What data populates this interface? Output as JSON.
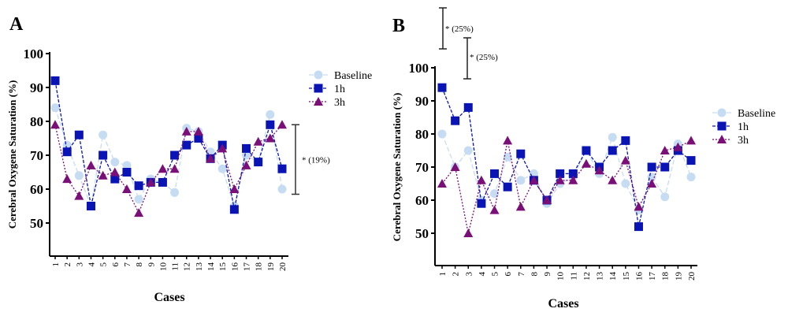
{
  "chart_data": [
    {
      "type": "line",
      "panel": "A",
      "title": "",
      "xlabel": "Cases",
      "ylabel": "Cerebral Oxygene Saturation (%)",
      "ylim": [
        40,
        100
      ],
      "yticks": [
        50,
        60,
        70,
        80,
        90,
        100
      ],
      "categories": [
        "1",
        "2",
        "3",
        "4",
        "5",
        "6",
        "7",
        "8",
        "9",
        "10",
        "11",
        "12",
        "13",
        "14",
        "15",
        "16",
        "17",
        "18",
        "19",
        "20"
      ],
      "legend_position": "top-right",
      "series": [
        {
          "name": "Baseline",
          "color": "#c6dcf2",
          "marker": "circle",
          "values": [
            84,
            73,
            64,
            55,
            76,
            68,
            67,
            57,
            63,
            62,
            59,
            78,
            77,
            71,
            66,
            55,
            70,
            68,
            82,
            60
          ]
        },
        {
          "name": "1h",
          "color": "#0a14b4",
          "marker": "square",
          "values": [
            92,
            71,
            76,
            55,
            70,
            63,
            65,
            61,
            62,
            62,
            70,
            73,
            75,
            69,
            73,
            54,
            72,
            68,
            79,
            66
          ]
        },
        {
          "name": "3h",
          "color": "#7a0f78",
          "marker": "triangle",
          "values": [
            79,
            63,
            58,
            67,
            64,
            65,
            60,
            53,
            62,
            66,
            66,
            77,
            77,
            69,
            72,
            60,
            67,
            74,
            75,
            79
          ]
        }
      ],
      "annotations": [
        {
          "text": "* (19%)",
          "range": [
            58.5,
            79
          ]
        }
      ]
    },
    {
      "type": "line",
      "panel": "B",
      "title": "",
      "xlabel": "Cases",
      "ylabel": "Cerebral Oxygene Saturation (%)",
      "ylim": [
        40,
        100
      ],
      "yticks": [
        50,
        60,
        70,
        80,
        90,
        100
      ],
      "categories": [
        "1",
        "2",
        "3",
        "4",
        "5",
        "6",
        "7",
        "8",
        "9",
        "10",
        "11",
        "12",
        "13",
        "14",
        "15",
        "16",
        "17",
        "18",
        "19",
        "20"
      ],
      "legend_position": "right",
      "series": [
        {
          "name": "Baseline",
          "color": "#c6dcf2",
          "marker": "circle",
          "values": [
            80,
            70,
            75,
            60,
            62,
            73,
            66,
            68,
            59,
            65,
            67,
            75,
            68,
            79,
            65,
            57,
            67,
            61,
            77,
            67
          ]
        },
        {
          "name": "1h",
          "color": "#0a14b4",
          "marker": "square",
          "values": [
            94,
            84,
            88,
            59,
            68,
            64,
            74,
            66,
            60,
            68,
            68,
            75,
            70,
            75,
            78,
            52,
            70,
            70,
            75,
            72
          ]
        },
        {
          "name": "3h",
          "color": "#7a0f78",
          "marker": "triangle",
          "values": [
            65,
            70,
            50,
            66,
            57,
            78,
            58,
            66,
            60,
            66,
            66,
            71,
            69,
            66,
            72,
            58,
            65,
            75,
            76,
            78
          ]
        }
      ],
      "annotations": [
        {
          "text": "* (25%)"
        },
        {
          "text": "* (25%)"
        }
      ]
    }
  ]
}
